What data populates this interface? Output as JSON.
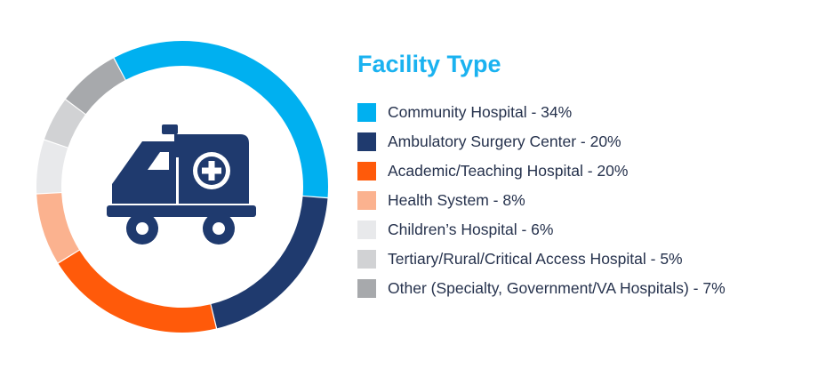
{
  "chart_data": {
    "type": "pie",
    "variant": "donut",
    "title": "Facility Type",
    "legend_position": "right",
    "slices": [
      {
        "label": "Community Hospital - 34%",
        "name": "Community Hospital",
        "value": 34,
        "color": "#00b0f0"
      },
      {
        "label": "Ambulatory Surgery Center - 20%",
        "name": "Ambulatory Surgery Center",
        "value": 20,
        "color": "#1f3a6e"
      },
      {
        "label": "Academic/Teaching Hospital - 20%",
        "name": "Academic/Teaching Hospital",
        "value": 20,
        "color": "#ff5a0a"
      },
      {
        "label": "Health System - 8%",
        "name": "Health System",
        "value": 8,
        "color": "#fbb28f"
      },
      {
        "label": "Children’s Hospital - 6%",
        "name": "Children’s Hospital",
        "value": 6,
        "color": "#e8e9eb"
      },
      {
        "label": "Tertiary/Rural/Critical Access Hospital - 5%",
        "name": "Tertiary/Rural/Critical Access Hospital",
        "value": 5,
        "color": "#d1d2d4"
      },
      {
        "label": "Other (Specialty, Government/VA Hospitals) - 7%",
        "name": "Other (Specialty, Government/VA Hospitals)",
        "value": 7,
        "color": "#a7a9ac"
      }
    ]
  },
  "center_icon": {
    "name": "ambulance-icon",
    "color": "#1f3a6e"
  }
}
